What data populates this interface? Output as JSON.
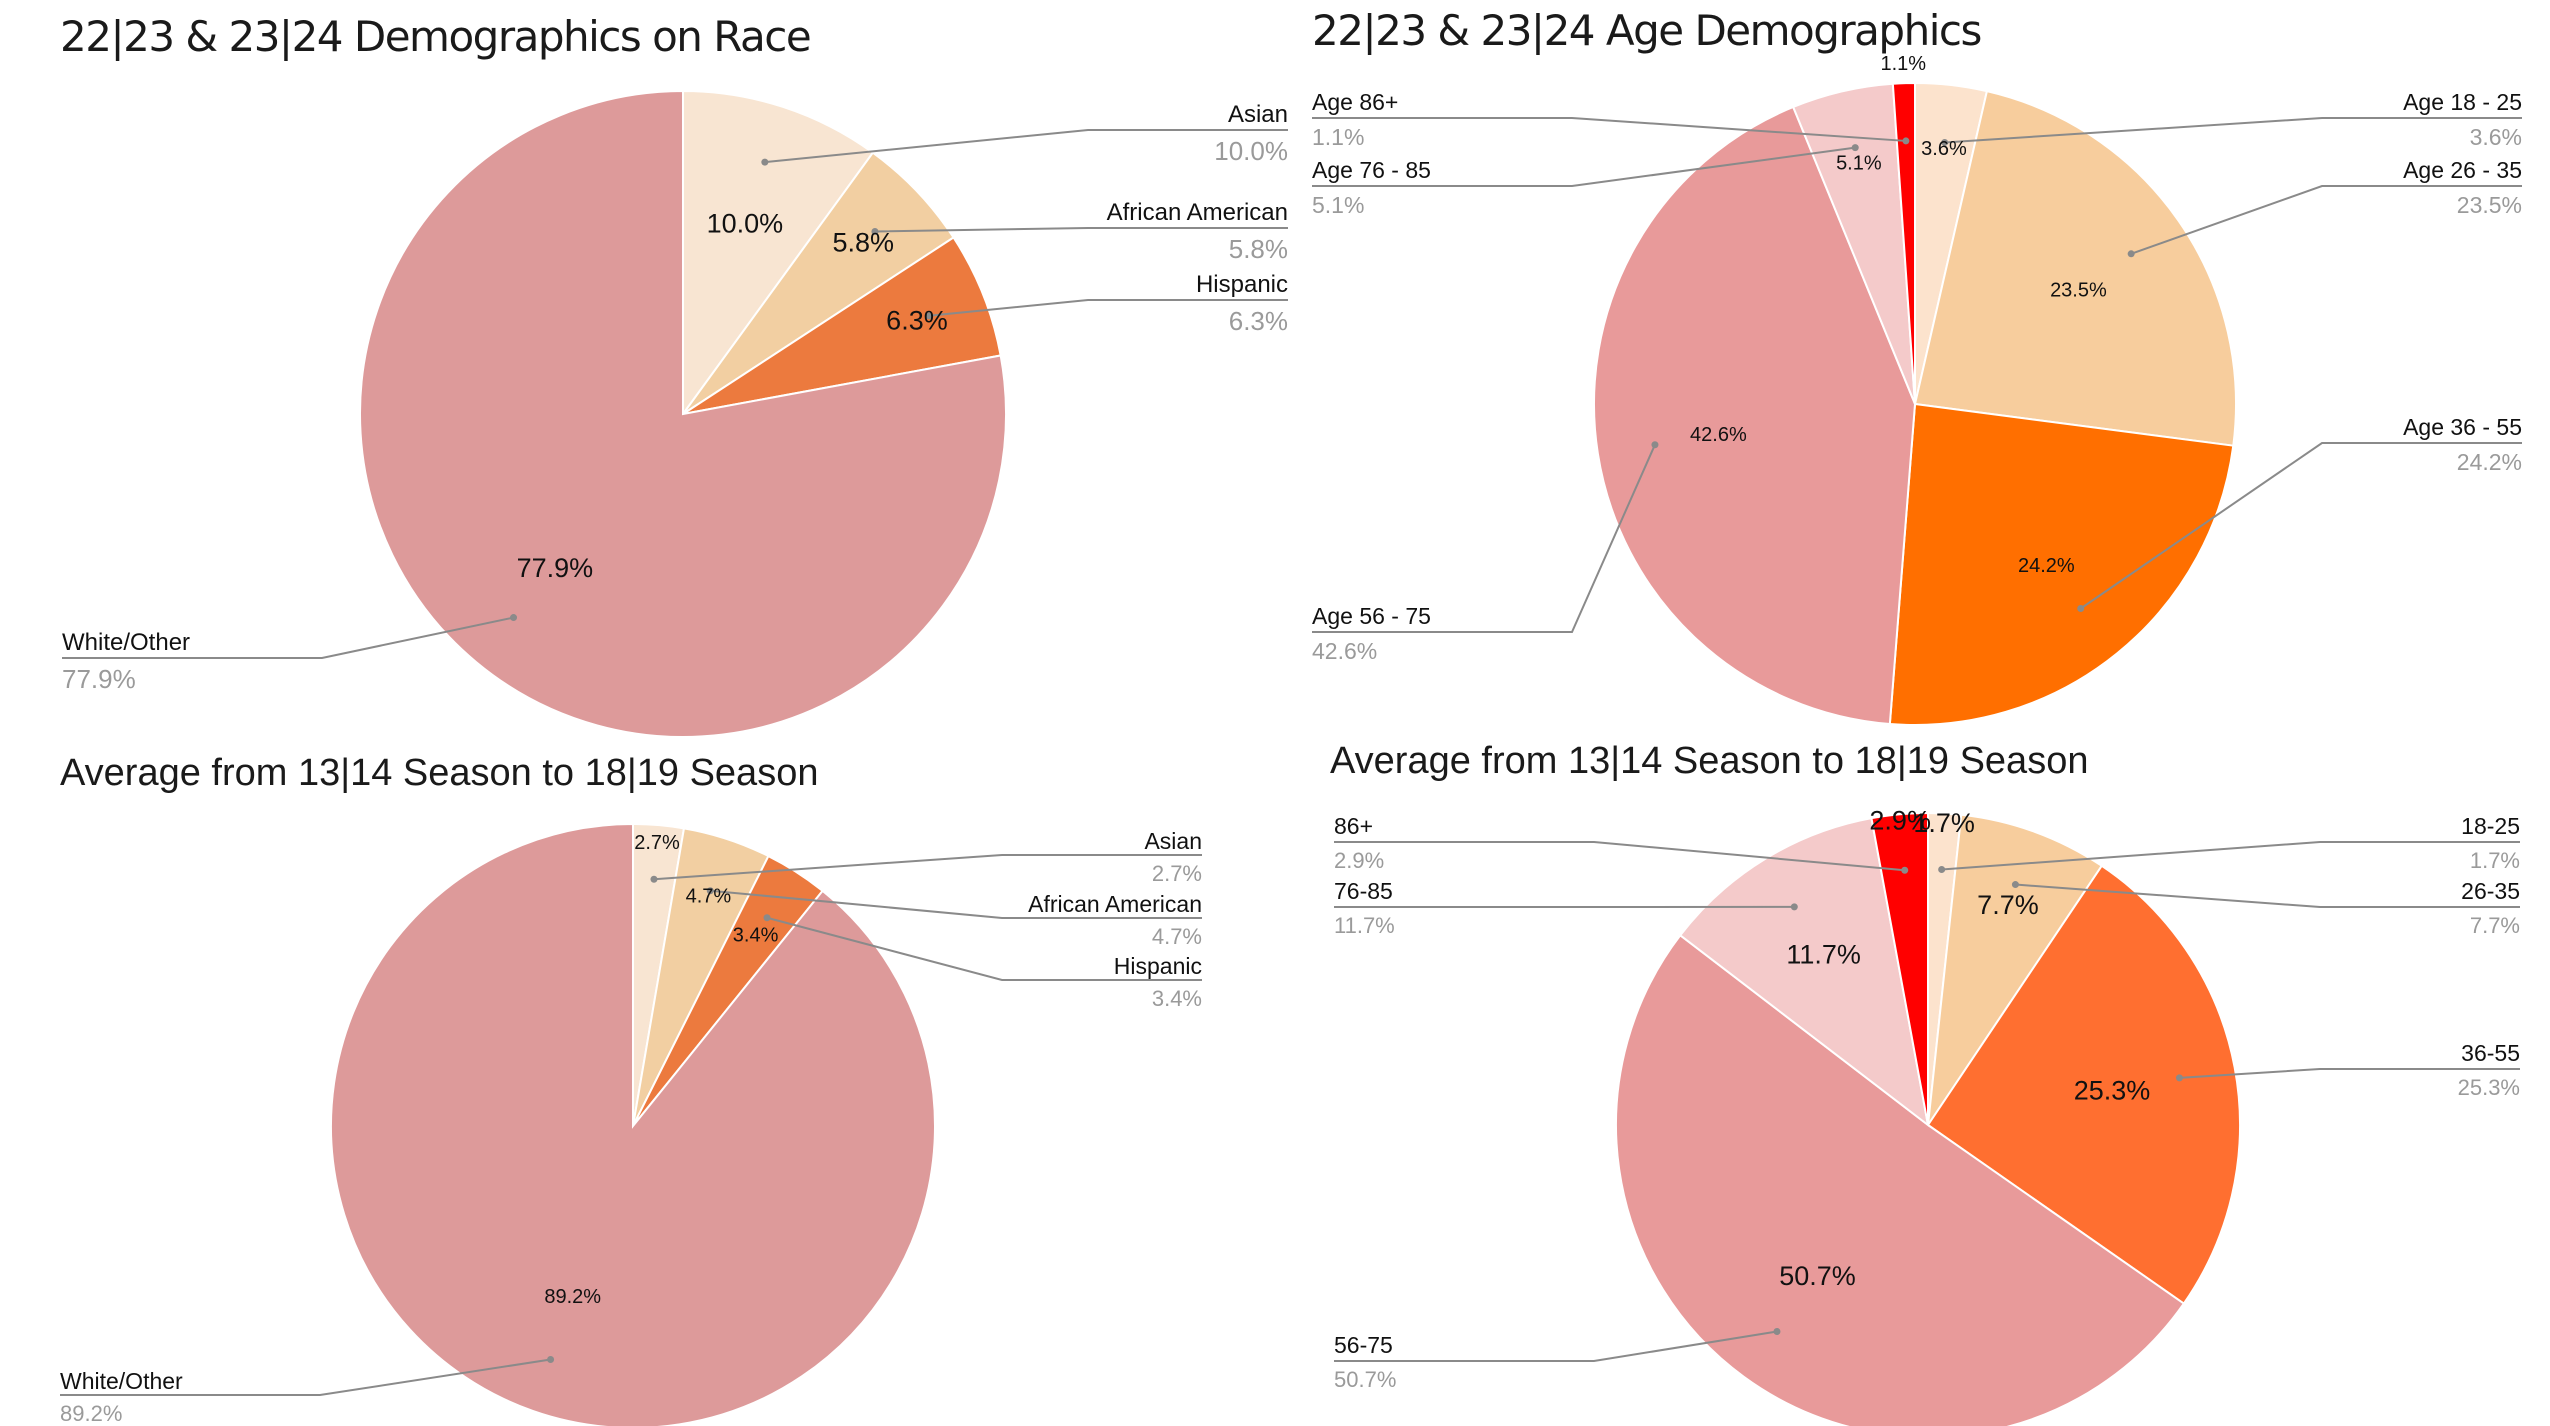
{
  "colors": {
    "leader": "#8a8a8a",
    "legend_pct": "#9a9a9a",
    "slice_label": "#111111",
    "background": "#ffffff"
  },
  "chart_data": [
    {
      "type": "pie",
      "title": "22|23 & 23|24 Demographics on Race",
      "categories": [
        "Asian",
        "African American",
        "Hispanic",
        "White/Other"
      ],
      "values": [
        10.0,
        5.8,
        6.3,
        77.9
      ],
      "slice_labels": [
        "10.0%",
        "5.8%",
        "6.3%",
        "77.9%"
      ],
      "colors": [
        "#F8E5D2",
        "#F2CFA2",
        "#EC7A3E",
        "#DD9A9A"
      ],
      "legend_placement": "callouts (right and left)"
    },
    {
      "type": "pie",
      "title": "22|23 & 23|24 Age Demographics",
      "categories": [
        "Age 18 - 25",
        "Age 26 - 35",
        "Age 36 - 55",
        "Age 56 - 75",
        "Age 76 - 85",
        "Age 86+"
      ],
      "values": [
        3.6,
        23.5,
        24.2,
        42.6,
        5.1,
        1.1
      ],
      "slice_labels": [
        "3.6%",
        "23.5%",
        "24.2%",
        "42.6%",
        "5.1%",
        "1.1%"
      ],
      "colors": [
        "#FCE3CD",
        "#F7CD9D",
        "#FF6F00",
        "#E89A9A",
        "#F4CACA",
        "#FF0000"
      ],
      "legend_placement": "callouts (right and left)"
    },
    {
      "type": "pie",
      "title": "Average from 13|14 Season to 18|19 Season",
      "categories": [
        "Asian",
        "African American",
        "Hispanic",
        "White/Other"
      ],
      "values": [
        2.7,
        4.7,
        3.4,
        89.2
      ],
      "slice_labels": [
        "2.7%",
        "4.7%",
        "3.4%",
        "89.2%"
      ],
      "colors": [
        "#F8E5D2",
        "#F2CFA2",
        "#EC7A3E",
        "#DD9A9A"
      ],
      "legend_placement": "callouts (right and left)"
    },
    {
      "type": "pie",
      "title": "Average from 13|14 Season to 18|19 Season",
      "categories": [
        "18-25",
        "26-35",
        "36-55",
        "56-75",
        "76-85",
        "86+"
      ],
      "values": [
        1.7,
        7.7,
        25.3,
        50.7,
        11.7,
        2.9
      ],
      "slice_labels": [
        "1.7%",
        "7.7%",
        "25.3%",
        "50.7%",
        "11.7%",
        "2.9%"
      ],
      "colors": [
        "#FCE3CD",
        "#F7CD9D",
        "#FF6F30",
        "#E89A9A",
        "#F4CACA",
        "#FF0000"
      ],
      "legend_placement": "callouts (right and left)"
    }
  ]
}
